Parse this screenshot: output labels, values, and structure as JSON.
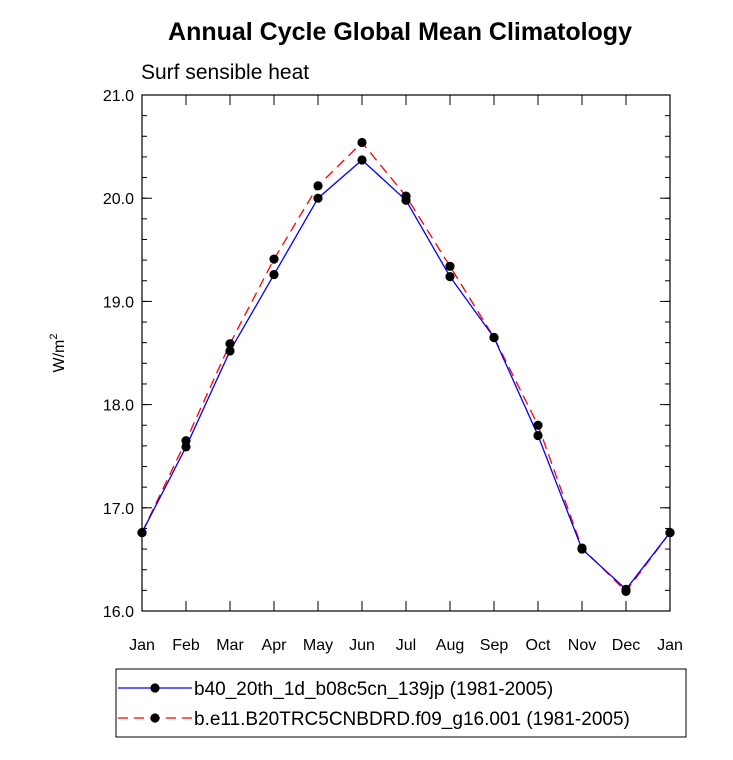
{
  "chart_data": {
    "type": "line",
    "title": "Annual Cycle Global Mean Climatology",
    "subtitle": "Surf sensible heat",
    "ylabel": "W/m",
    "ylabel_sup": "2",
    "categories": [
      "Jan",
      "Feb",
      "Mar",
      "Apr",
      "May",
      "Jun",
      "Jul",
      "Aug",
      "Sep",
      "Oct",
      "Nov",
      "Dec",
      "Jan"
    ],
    "ylim": [
      16.0,
      21.0
    ],
    "yticks": [
      "16.0",
      "17.0",
      "18.0",
      "19.0",
      "20.0",
      "21.0"
    ],
    "series": [
      {
        "name": "b40_20th_1d_b08c5cn_139jp (1981-2005)",
        "color": "#0000ff",
        "dash": "solid",
        "values": [
          16.76,
          17.59,
          18.52,
          19.26,
          20.0,
          20.37,
          19.98,
          19.24,
          18.65,
          17.7,
          16.6,
          16.21,
          16.76
        ]
      },
      {
        "name": "b.e11.B20TRC5CNBDRD.f09_g16.001 (1981-2005)",
        "color": "#ff0000",
        "dash": "dashed",
        "values": [
          16.76,
          17.65,
          18.59,
          19.41,
          20.12,
          20.54,
          20.02,
          19.34,
          18.65,
          17.8,
          16.61,
          16.19,
          16.76
        ]
      }
    ],
    "marker": "filled-circle",
    "marker_color": "#000000",
    "legend_position": "bottom"
  }
}
